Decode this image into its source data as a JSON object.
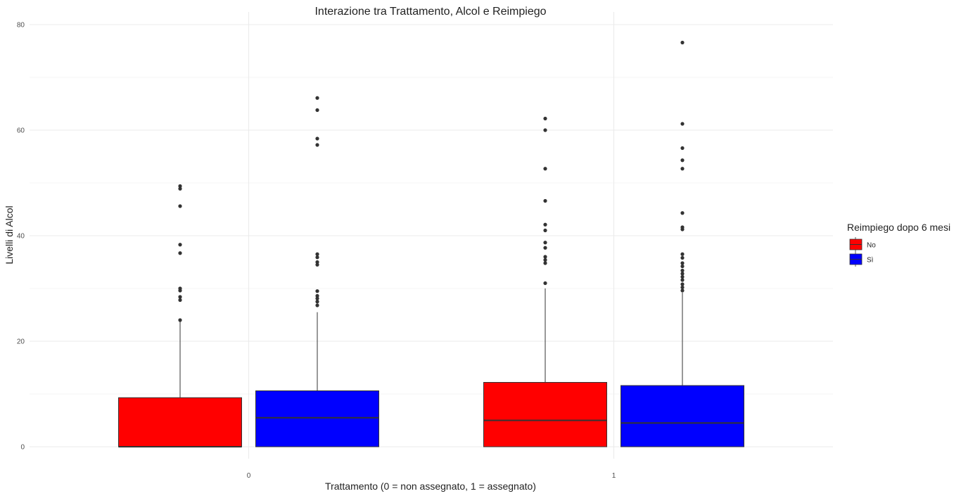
{
  "chart_data": {
    "type": "boxplot",
    "title": "Interazione tra Trattamento, Alcol e Reimpiego",
    "xlabel": "Trattamento (0 = non assegnato, 1 = assegnato)",
    "ylabel": "Livelli di Alcol",
    "categories": [
      "0",
      "1"
    ],
    "ylim": [
      0,
      80
    ],
    "yticks": [
      "0",
      "20",
      "40",
      "60",
      "80"
    ],
    "grid": true,
    "legend": {
      "title": "Reimpiego dopo 6 mesi",
      "position": "right",
      "entries": [
        "No",
        "Sì"
      ]
    },
    "series": [
      {
        "name": "No",
        "color": "#ff0000",
        "boxes": [
          {
            "category": "0",
            "q1": 0,
            "median": 0,
            "q3": 9.3,
            "whisker_low": 0,
            "whisker_high": 23.8,
            "outliers": [
              24.0,
              27.8,
              28.4,
              29.6,
              30.0,
              36.7,
              38.3,
              45.6,
              48.9,
              49.4
            ]
          },
          {
            "category": "1",
            "q1": 0,
            "median": 5.0,
            "q3": 12.2,
            "whisker_low": 0,
            "whisker_high": 30.0,
            "outliers": [
              31.0,
              34.8,
              35.4,
              36.0,
              37.7,
              38.7,
              41.0,
              42.1,
              46.6,
              52.7,
              60.0,
              62.2
            ]
          }
        ]
      },
      {
        "name": "Sì",
        "color": "#0000ff",
        "boxes": [
          {
            "category": "0",
            "q1": 0,
            "median": 5.5,
            "q3": 10.6,
            "whisker_low": 0,
            "whisker_high": 25.5,
            "outliers": [
              26.8,
              27.5,
              28.1,
              28.6,
              29.5,
              34.5,
              35.0,
              35.9,
              36.5,
              57.2,
              58.4,
              63.8,
              66.1
            ]
          },
          {
            "category": "1",
            "q1": 0,
            "median": 4.5,
            "q3": 11.6,
            "whisker_low": 0,
            "whisker_high": 29.2,
            "outliers": [
              29.6,
              30.2,
              30.8,
              31.6,
              32.2,
              32.8,
              33.4,
              34.2,
              34.8,
              35.8,
              36.5,
              41.2,
              41.6,
              44.3,
              52.7,
              54.3,
              56.6,
              61.2,
              76.6
            ]
          }
        ]
      }
    ]
  }
}
